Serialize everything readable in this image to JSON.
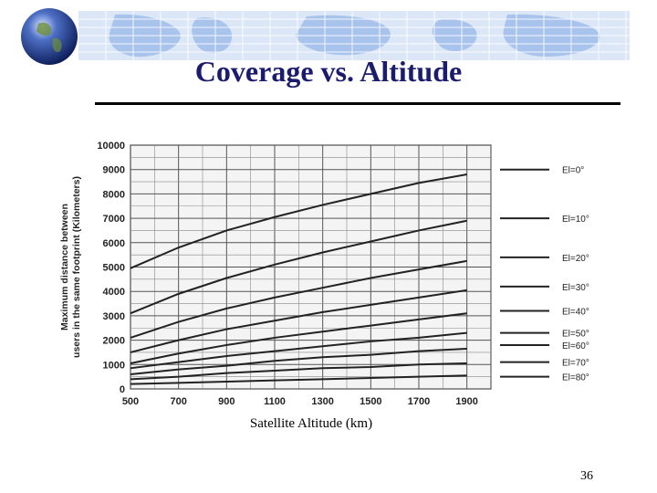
{
  "slide": {
    "title": "Coverage vs. Altitude",
    "page_number": "36"
  },
  "colors": {
    "title": "#1c1c6e",
    "banner_background": "#dbe7f7",
    "banner_land": "#a9c4ec",
    "banner_grid": "#ffffff"
  },
  "icons": {
    "globe": "globe-icon",
    "banner": "world-map-banner"
  },
  "chart_data": {
    "type": "line",
    "xlabel": "Satellite Altitude (km)",
    "ylabel_lines": [
      "Maximum distance between",
      "users in the same footprint (Kilometers)"
    ],
    "x": [
      500,
      700,
      900,
      1100,
      1300,
      1500,
      1700,
      1900
    ],
    "x_tick_labels": [
      "500",
      "700",
      "900",
      "1100",
      "1300",
      "1500",
      "1700",
      "1900"
    ],
    "y_tick_labels": [
      "0",
      "1000",
      "2000",
      "3000",
      "4000",
      "5000",
      "6000",
      "7000",
      "8000",
      "9000",
      "10000"
    ],
    "xlim": [
      500,
      2000
    ],
    "ylim": [
      0,
      10000
    ],
    "x_grid_step": 100,
    "y_grid_step": 500,
    "grid": true,
    "legend_placement": "right",
    "series": [
      {
        "name": "El=0°",
        "values": [
          4950,
          5800,
          6500,
          7050,
          7550,
          8000,
          8450,
          8800
        ]
      },
      {
        "name": "El=10°",
        "values": [
          3100,
          3900,
          4550,
          5100,
          5600,
          6050,
          6500,
          6900
        ]
      },
      {
        "name": "El=20°",
        "values": [
          2100,
          2750,
          3300,
          3750,
          4150,
          4550,
          4900,
          5250
        ]
      },
      {
        "name": "El=30°",
        "values": [
          1500,
          2000,
          2450,
          2800,
          3150,
          3450,
          3750,
          4050
        ]
      },
      {
        "name": "El=40°",
        "values": [
          1050,
          1450,
          1800,
          2100,
          2350,
          2600,
          2850,
          3100
        ]
      },
      {
        "name": "El=50°",
        "values": [
          850,
          1100,
          1350,
          1550,
          1750,
          1950,
          2100,
          2300
        ]
      },
      {
        "name": "El=60°",
        "values": [
          600,
          800,
          950,
          1150,
          1300,
          1400,
          1550,
          1650
        ]
      },
      {
        "name": "El=70°",
        "values": [
          400,
          500,
          650,
          750,
          850,
          900,
          1000,
          1050
        ]
      },
      {
        "name": "El=80°",
        "values": [
          200,
          250,
          300,
          350,
          400,
          450,
          500,
          550
        ]
      }
    ],
    "legend_y_values": [
      9000,
      7000,
      5400,
      4200,
      3200,
      2300,
      1800,
      1100,
      500
    ]
  }
}
